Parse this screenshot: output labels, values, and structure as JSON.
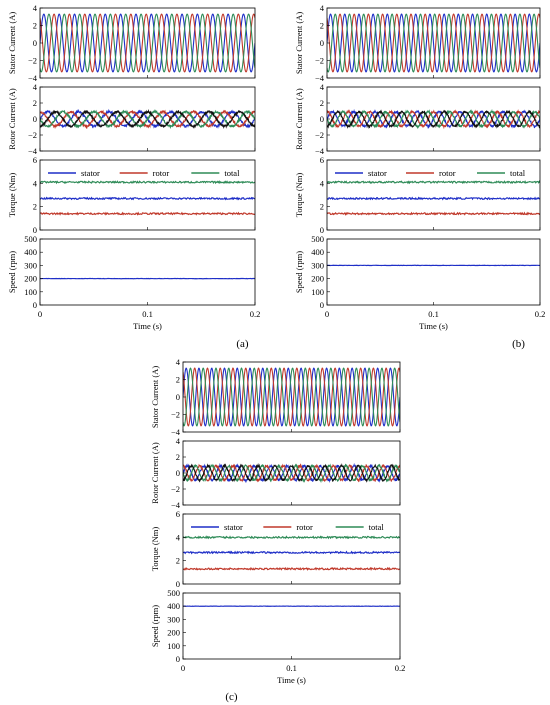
{
  "colors": {
    "phase_blue": "#1f2fc7",
    "phase_red": "#c0392b",
    "phase_green": "#2e8b57",
    "phase_black": "#111111",
    "stator": "#1f2fc7",
    "rotor": "#c0392b",
    "total": "#2e8b57"
  },
  "chart_data": [
    {
      "id": "a",
      "panel_label": "(a)",
      "type": "line",
      "xlabel": "Time (s)",
      "xlim": [
        0,
        0.2
      ],
      "xticks": [
        0,
        0.1,
        0.2
      ],
      "xtick_labels": [
        "0",
        "0.1",
        "0.2"
      ],
      "subplots": {
        "stator_current": {
          "ylabel": "Stator Current (A)",
          "ylim": [
            -4,
            4
          ],
          "yticks": [
            -4,
            -2,
            0,
            2,
            4
          ],
          "ytick_labels": [
            "−4",
            "−2",
            "0",
            "2",
            "4"
          ],
          "amplitude": 3.3,
          "cycles": 14,
          "phases": 3
        },
        "rotor_current": {
          "ylabel": "Rotor Current (A)",
          "ylim": [
            -4,
            4
          ],
          "yticks": [
            -4,
            -2,
            0,
            2,
            4
          ],
          "ytick_labels": [
            "−4",
            "−2",
            "0",
            "2",
            "4"
          ],
          "amplitude": 0.9,
          "cycles": 7,
          "phases": 4
        },
        "torque": {
          "ylabel": "Torque (Nm)",
          "ylim": [
            0,
            6
          ],
          "yticks": [
            0,
            2,
            4,
            6
          ],
          "ytick_labels": [
            "0",
            "2",
            "4",
            "6"
          ],
          "legend": [
            "stator",
            "rotor",
            "total"
          ],
          "series": [
            {
              "name": "stator",
              "mean": 2.7
            },
            {
              "name": "rotor",
              "mean": 1.4
            },
            {
              "name": "total",
              "mean": 4.1
            }
          ]
        },
        "speed": {
          "ylabel": "Speed (rpm)",
          "ylim": [
            0,
            500
          ],
          "yticks": [
            0,
            100,
            200,
            300,
            400,
            500
          ],
          "ytick_labels": [
            "0",
            "100",
            "200",
            "300",
            "400",
            "500"
          ],
          "value": 200
        }
      }
    },
    {
      "id": "b",
      "panel_label": "(b)",
      "type": "line",
      "xlabel": "Time (s)",
      "xlim": [
        0,
        0.2
      ],
      "xticks": [
        0,
        0.1,
        0.2
      ],
      "xtick_labels": [
        "0",
        "0.1",
        "0.2"
      ],
      "subplots": {
        "stator_current": {
          "ylabel": "Stator Current (A)",
          "ylim": [
            -4,
            4
          ],
          "yticks": [
            -4,
            -2,
            0,
            2,
            4
          ],
          "ytick_labels": [
            "−4",
            "−2",
            "0",
            "2",
            "4"
          ],
          "amplitude": 3.3,
          "cycles": 15,
          "phases": 3
        },
        "rotor_current": {
          "ylabel": "Rotor Current (A)",
          "ylim": [
            -4,
            4
          ],
          "yticks": [
            -4,
            -2,
            0,
            2,
            4
          ],
          "ytick_labels": [
            "−4",
            "−2",
            "0",
            "2",
            "4"
          ],
          "amplitude": 0.9,
          "cycles": 10,
          "phases": 4
        },
        "torque": {
          "ylabel": "Torque (Nm)",
          "ylim": [
            0,
            6
          ],
          "yticks": [
            0,
            2,
            4,
            6
          ],
          "ytick_labels": [
            "0",
            "2",
            "4",
            "6"
          ],
          "legend": [
            "stator",
            "rotor",
            "total"
          ],
          "series": [
            {
              "name": "stator",
              "mean": 2.7
            },
            {
              "name": "rotor",
              "mean": 1.4
            },
            {
              "name": "total",
              "mean": 4.1
            }
          ]
        },
        "speed": {
          "ylabel": "Speed (rpm)",
          "ylim": [
            0,
            500
          ],
          "yticks": [
            0,
            100,
            200,
            300,
            400,
            500
          ],
          "ytick_labels": [
            "0",
            "100",
            "200",
            "300",
            "400",
            "500"
          ],
          "value": 300
        }
      }
    },
    {
      "id": "c",
      "panel_label": "(c)",
      "type": "line",
      "xlabel": "Time (s)",
      "xlim": [
        0,
        0.2
      ],
      "xticks": [
        0,
        0.1,
        0.2
      ],
      "xtick_labels": [
        "0",
        "0.1",
        "0.2"
      ],
      "subplots": {
        "stator_current": {
          "ylabel": "Stator Current (A)",
          "ylim": [
            -4,
            4
          ],
          "yticks": [
            -4,
            -2,
            0,
            2,
            4
          ],
          "ytick_labels": [
            "−4",
            "−2",
            "0",
            "2",
            "4"
          ],
          "amplitude": 3.3,
          "cycles": 17,
          "phases": 3
        },
        "rotor_current": {
          "ylabel": "Rotor Current (A)",
          "ylim": [
            -4,
            4
          ],
          "yticks": [
            -4,
            -2,
            0,
            2,
            4
          ],
          "ytick_labels": [
            "−4",
            "−2",
            "0",
            "2",
            "4"
          ],
          "amplitude": 0.9,
          "cycles": 13,
          "phases": 4
        },
        "torque": {
          "ylabel": "Torque (Nm)",
          "ylim": [
            0,
            6
          ],
          "yticks": [
            0,
            2,
            4,
            6
          ],
          "ytick_labels": [
            "0",
            "2",
            "4",
            "6"
          ],
          "legend": [
            "stator",
            "rotor",
            "total"
          ],
          "series": [
            {
              "name": "stator",
              "mean": 2.7
            },
            {
              "name": "rotor",
              "mean": 1.3
            },
            {
              "name": "total",
              "mean": 4.0
            }
          ]
        },
        "speed": {
          "ylabel": "Speed (rpm)",
          "ylim": [
            0,
            500
          ],
          "yticks": [
            0,
            100,
            200,
            300,
            400,
            500
          ],
          "ytick_labels": [
            "0",
            "100",
            "200",
            "300",
            "400",
            "500"
          ],
          "value": 400
        }
      }
    }
  ]
}
